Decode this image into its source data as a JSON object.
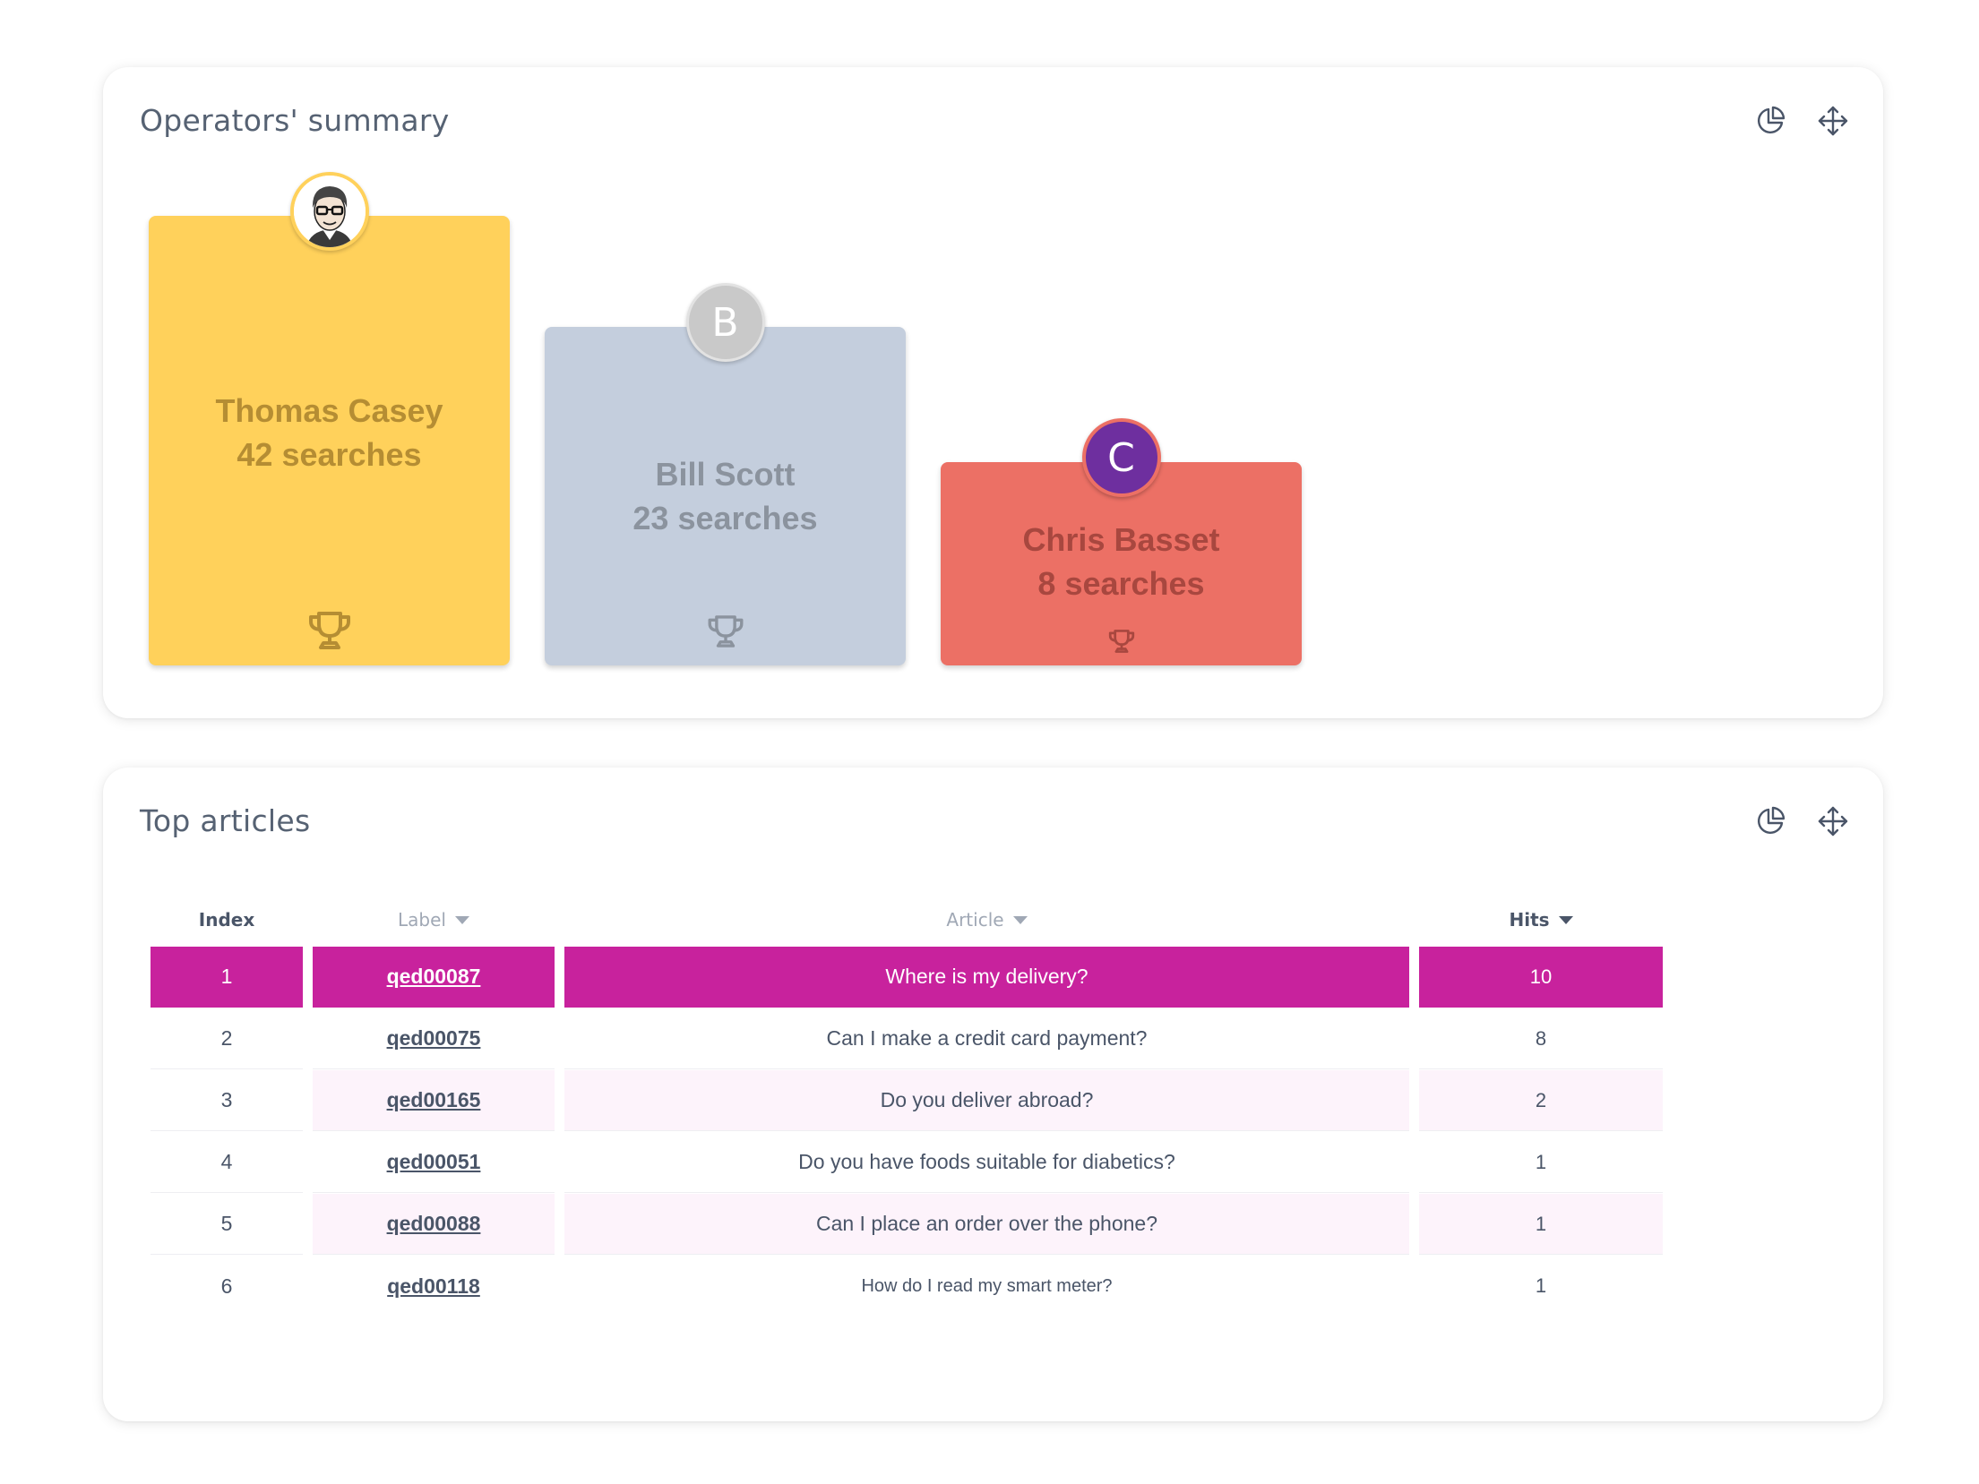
{
  "operators_card": {
    "title": "Operators' summary",
    "tools": [
      "chart-icon",
      "move-icon"
    ],
    "podium": [
      {
        "rank": 1,
        "name": "Thomas Casey",
        "searches": "42 searches",
        "avatar": "cartoon-portrait",
        "color": "#ffd15b"
      },
      {
        "rank": 2,
        "name": "Bill Scott",
        "searches": "23 searches",
        "avatar_letter": "B",
        "color": "#c4cedd"
      },
      {
        "rank": 3,
        "name": "Chris Basset",
        "searches": "8 searches",
        "avatar_letter": "C",
        "color": "#ec7065"
      }
    ]
  },
  "articles_card": {
    "title": "Top articles",
    "tools": [
      "chart-icon",
      "move-icon"
    ],
    "columns": {
      "index": "Index",
      "label": "Label",
      "article": "Article",
      "hits": "Hits"
    },
    "highlight_color": "#c8229d",
    "rows": [
      {
        "index": "1",
        "label": "qed00087",
        "article": "Where is my delivery?",
        "hits": "10"
      },
      {
        "index": "2",
        "label": "qed00075",
        "article": "Can I make a credit card payment?",
        "hits": "8"
      },
      {
        "index": "3",
        "label": "qed00165",
        "article": "Do you deliver abroad?",
        "hits": "2"
      },
      {
        "index": "4",
        "label": "qed00051",
        "article": "Do you have foods suitable for diabetics?",
        "hits": "1"
      },
      {
        "index": "5",
        "label": "qed00088",
        "article": "Can I place an order over the phone?",
        "hits": "1"
      },
      {
        "index": "6",
        "label": "qed00118",
        "article": "How do I read my smart meter?",
        "hits": "1"
      }
    ]
  }
}
